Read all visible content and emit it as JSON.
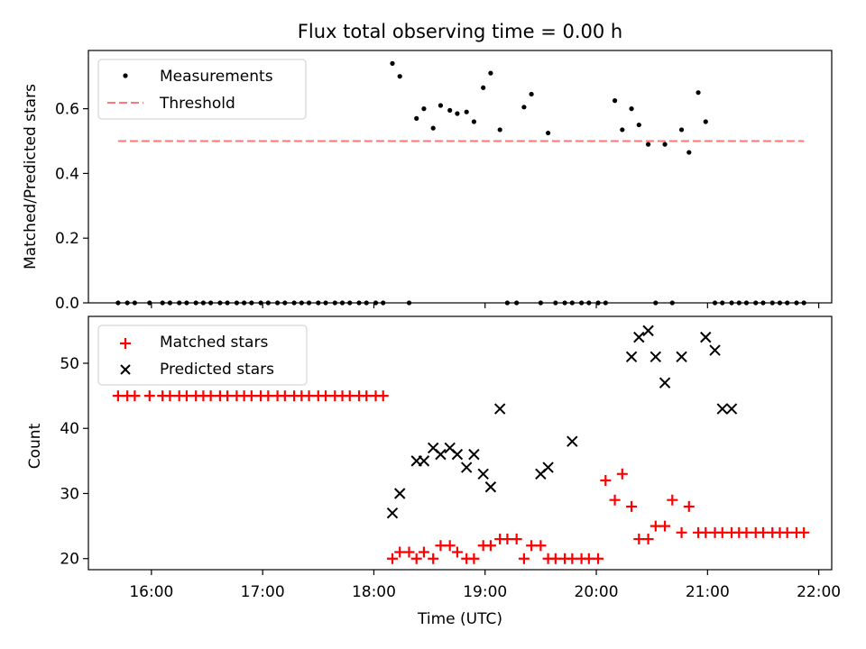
{
  "figure": {
    "title": "Flux total observing time = 0.00 h",
    "xlabel": "Time (UTC)"
  },
  "chart_data": [
    {
      "type": "scatter",
      "ylabel": "Matched/Predicted stars",
      "xlim": [
        "15:26",
        "22:07"
      ],
      "ylim": [
        0,
        0.78
      ],
      "yticks": [
        0.0,
        0.2,
        0.4,
        0.6
      ],
      "ytick_labels": [
        "0.0",
        "0.2",
        "0.4",
        "0.6"
      ],
      "xticks": [
        "16:00",
        "17:00",
        "18:00",
        "19:00",
        "20:00",
        "21:00",
        "22:00"
      ],
      "xtick_labels": [],
      "legend_position": "top-left",
      "grid": false,
      "series": [
        {
          "name": "Measurements",
          "marker": "dot",
          "color": "#000000",
          "x": [
            "15:42",
            "15:47",
            "15:51",
            "15:59",
            "16:06",
            "16:10",
            "16:15",
            "16:19",
            "16:24",
            "16:28",
            "16:32",
            "16:37",
            "16:41",
            "16:46",
            "16:50",
            "16:54",
            "16:59",
            "17:03",
            "17:08",
            "17:12",
            "17:17",
            "17:21",
            "17:25",
            "17:30",
            "17:34",
            "17:39",
            "17:43",
            "17:47",
            "17:52",
            "17:56",
            "18:01",
            "18:05",
            "18:10",
            "18:14",
            "18:19",
            "18:23",
            "18:27",
            "18:32",
            "18:36",
            "18:41",
            "18:45",
            "18:50",
            "18:54",
            "18:59",
            "19:03",
            "19:08",
            "19:12",
            "19:17",
            "19:21",
            "19:25",
            "19:30",
            "19:34",
            "19:38",
            "19:43",
            "19:47",
            "19:52",
            "19:56",
            "20:01",
            "20:05",
            "20:10",
            "20:14",
            "20:19",
            "20:23",
            "20:28",
            "20:32",
            "20:37",
            "20:41",
            "20:46",
            "20:50",
            "20:55",
            "20:59",
            "21:04",
            "21:08",
            "21:13",
            "21:17",
            "21:21",
            "21:26",
            "21:30",
            "21:35",
            "21:39",
            "21:43",
            "21:48",
            "21:52"
          ],
          "y": [
            0,
            0,
            0,
            0,
            0,
            0,
            0,
            0,
            0,
            0,
            0,
            0,
            0,
            0,
            0,
            0,
            0,
            0,
            0,
            0,
            0,
            0,
            0,
            0,
            0,
            0,
            0,
            0,
            0,
            0,
            0,
            0,
            0.74,
            0.7,
            0,
            0.57,
            0.6,
            0.54,
            0.61,
            0.595,
            0.585,
            0.59,
            0.56,
            0.665,
            0.71,
            0.535,
            0,
            0,
            0.605,
            0.645,
            0,
            0.525,
            0,
            0,
            0,
            0,
            0,
            0,
            0,
            0.625,
            0.535,
            0.6,
            0.55,
            0.49,
            0,
            0.49,
            0,
            0.535,
            0.465,
            0.65,
            0.56,
            0,
            0,
            0,
            0,
            0,
            0,
            0,
            0,
            0,
            0,
            0,
            0
          ]
        },
        {
          "name": "Threshold",
          "marker": "dashed-line",
          "color": "#ff7777",
          "x": [
            "15:42",
            "21:52"
          ],
          "y": [
            0.5,
            0.5
          ]
        }
      ]
    },
    {
      "type": "scatter",
      "ylabel": "Count",
      "xlim": [
        "15:26",
        "22:07"
      ],
      "ylim": [
        18.3,
        57.2
      ],
      "yticks": [
        20,
        30,
        40,
        50
      ],
      "ytick_labels": [
        "20",
        "30",
        "40",
        "50"
      ],
      "xticks": [
        "16:00",
        "17:00",
        "18:00",
        "19:00",
        "20:00",
        "21:00",
        "22:00"
      ],
      "xtick_labels": [
        "16:00",
        "17:00",
        "18:00",
        "19:00",
        "20:00",
        "21:00",
        "22:00"
      ],
      "legend_position": "top-left",
      "grid": false,
      "series": [
        {
          "name": "Matched stars",
          "marker": "plus",
          "color": "#ff0000",
          "x": [
            "15:42",
            "15:47",
            "15:51",
            "15:59",
            "16:06",
            "16:10",
            "16:15",
            "16:19",
            "16:24",
            "16:28",
            "16:32",
            "16:37",
            "16:41",
            "16:46",
            "16:50",
            "16:54",
            "16:59",
            "17:03",
            "17:08",
            "17:12",
            "17:17",
            "17:21",
            "17:25",
            "17:30",
            "17:34",
            "17:39",
            "17:43",
            "17:47",
            "17:52",
            "17:56",
            "18:01",
            "18:05",
            "18:10",
            "18:14",
            "18:19",
            "18:23",
            "18:27",
            "18:32",
            "18:36",
            "18:41",
            "18:45",
            "18:50",
            "18:54",
            "18:59",
            "19:03",
            "19:08",
            "19:12",
            "19:17",
            "19:21",
            "19:25",
            "19:30",
            "19:34",
            "19:38",
            "19:43",
            "19:47",
            "19:52",
            "19:56",
            "20:01",
            "20:05",
            "20:10",
            "20:14",
            "20:19",
            "20:23",
            "20:28",
            "20:32",
            "20:37",
            "20:41",
            "20:46",
            "20:50",
            "20:55",
            "20:59",
            "21:04",
            "21:08",
            "21:13",
            "21:17",
            "21:21",
            "21:26",
            "21:30",
            "21:35",
            "21:39",
            "21:43",
            "21:48",
            "21:52"
          ],
          "y": [
            45,
            45,
            45,
            45,
            45,
            45,
            45,
            45,
            45,
            45,
            45,
            45,
            45,
            45,
            45,
            45,
            45,
            45,
            45,
            45,
            45,
            45,
            45,
            45,
            45,
            45,
            45,
            45,
            45,
            45,
            45,
            45,
            20,
            21,
            21,
            20,
            21,
            20,
            22,
            22,
            21,
            20,
            20,
            22,
            22,
            23,
            23,
            23,
            20,
            22,
            22,
            20,
            20,
            20,
            20,
            20,
            20,
            20,
            32,
            29,
            33,
            28,
            23,
            23,
            25,
            25,
            29,
            24,
            28,
            24,
            24,
            24,
            24,
            24,
            24,
            24,
            24,
            24,
            24,
            24,
            24,
            24,
            24
          ]
        },
        {
          "name": "Predicted stars",
          "marker": "x",
          "color": "#000000",
          "x": [
            "18:10",
            "18:14",
            "18:23",
            "18:27",
            "18:32",
            "18:36",
            "18:41",
            "18:45",
            "18:50",
            "18:54",
            "18:59",
            "19:03",
            "19:08",
            "19:30",
            "19:34",
            "19:47",
            "20:19",
            "20:23",
            "20:28",
            "20:32",
            "20:37",
            "20:46",
            "20:59",
            "21:04",
            "21:08",
            "21:13"
          ],
          "y": [
            27,
            30,
            35,
            35,
            37,
            36,
            37,
            36,
            34,
            36,
            33,
            31,
            43,
            33,
            34,
            38,
            51,
            54,
            55,
            51,
            47,
            51,
            54,
            52,
            43,
            43
          ]
        }
      ]
    }
  ]
}
